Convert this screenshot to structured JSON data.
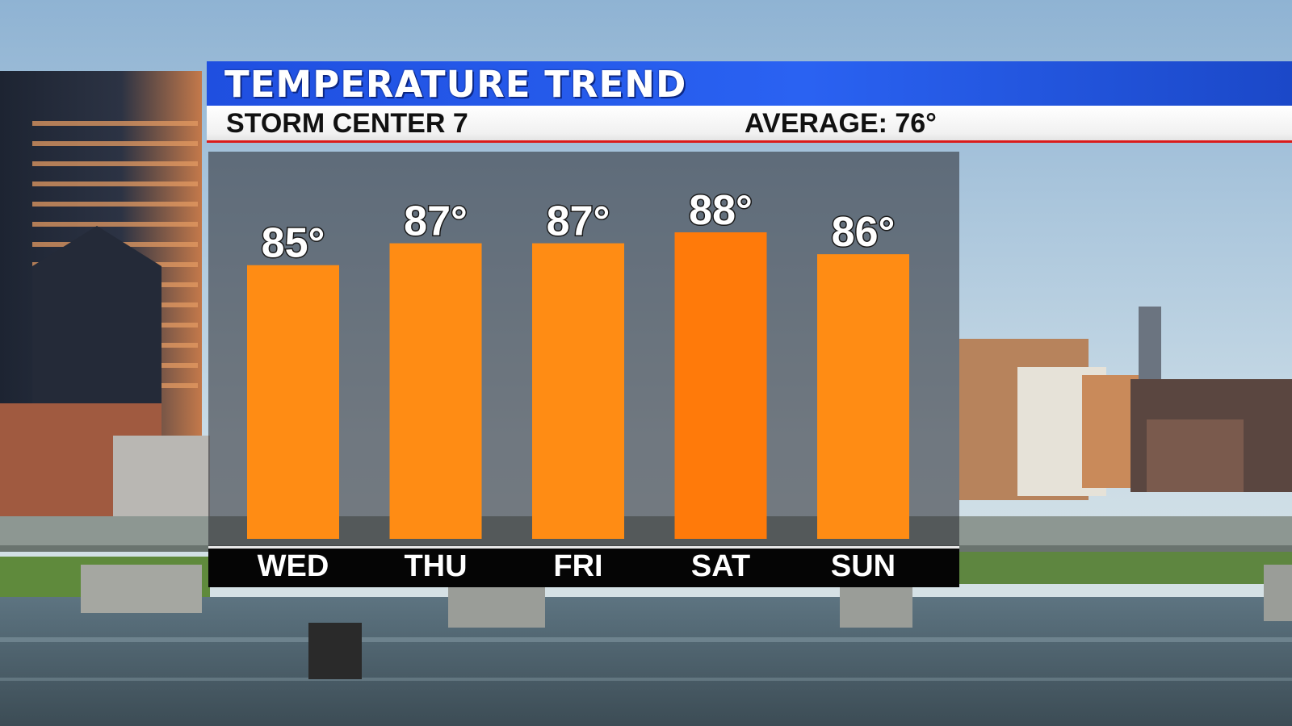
{
  "header": {
    "title": "TEMPERATURE TREND",
    "station": "STORM CENTER 7",
    "average": "AVERAGE: 76°"
  },
  "colors": {
    "title_bar": "#2a62f2",
    "accent_line": "#d91c1c",
    "bar": "#ff8c14",
    "bar_highlight": "#ff7a0a",
    "axis_strip": "#050505"
  },
  "chart_data": {
    "type": "bar",
    "categories": [
      "WED",
      "THU",
      "FRI",
      "SAT",
      "SUN"
    ],
    "values": [
      85,
      87,
      87,
      88,
      86
    ],
    "value_labels": [
      "85°",
      "87°",
      "87°",
      "88°",
      "86°"
    ],
    "unit": "°",
    "title": "TEMPERATURE TREND",
    "xlabel": "",
    "ylabel": "",
    "grid": false,
    "legend": "none"
  }
}
